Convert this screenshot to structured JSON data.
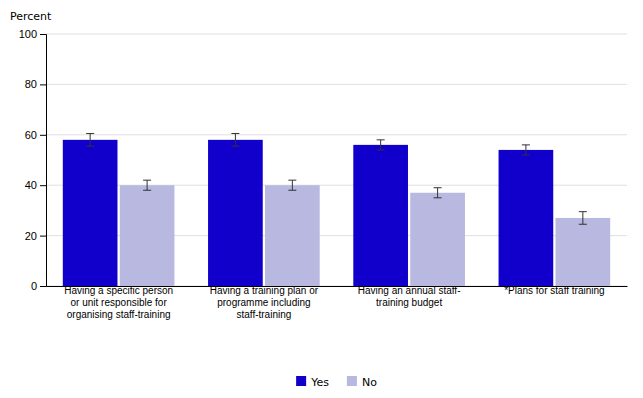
{
  "chart_data": {
    "type": "bar",
    "categories": [
      "Having a specific person\nor unit responsible for\norganising staff-training",
      "Having a training plan or\nprogramme including\nstaff-training",
      "Having an annual staff-\ntraining budget",
      "*Plans for staff training"
    ],
    "series": [
      {
        "name": "Yes",
        "color": "#1100cc",
        "values": [
          58,
          58,
          56,
          54
        ],
        "errors": [
          2.5,
          2.5,
          2.0,
          2.0
        ]
      },
      {
        "name": "No",
        "color": "#b8b8e0",
        "values": [
          40,
          40,
          37,
          27
        ],
        "errors": [
          2.0,
          2.0,
          2.0,
          2.5
        ]
      }
    ],
    "ylabel": "Percent",
    "ylim": [
      0,
      100
    ],
    "yticks": [
      0,
      20,
      40,
      60,
      80,
      100
    ],
    "grid": true,
    "legend": "bottom"
  }
}
